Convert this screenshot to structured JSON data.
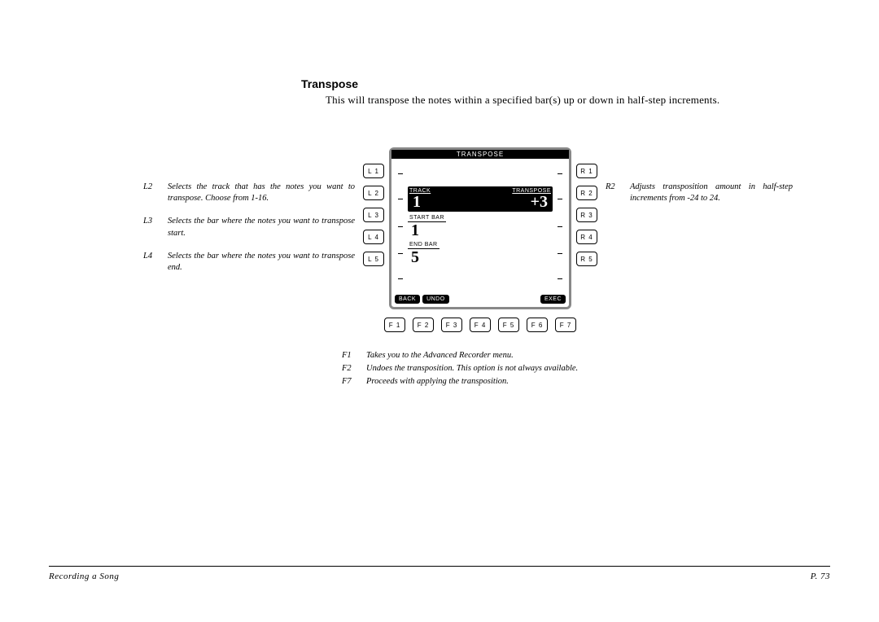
{
  "section": {
    "title": "Transpose",
    "description": "This will transpose the notes within a specified bar(s) up or down in half-step increments."
  },
  "left_notes": [
    {
      "key": "L2",
      "text": "Selects the track that has the notes you want to transpose. Choose from 1-16."
    },
    {
      "key": "L3",
      "text": "Selects the bar where the notes you want to transpose start."
    },
    {
      "key": "L4",
      "text": "Selects the bar where the notes you want to transpose end."
    }
  ],
  "right_notes": [
    {
      "key": "R2",
      "text": "Adjusts transposition amount in half-step increments from -24 to 24."
    }
  ],
  "f_notes": [
    {
      "key": "F1",
      "text": "Takes you  to the Advanced Recorder menu."
    },
    {
      "key": "F2",
      "text": "Undoes the transposition.  This option is not always available."
    },
    {
      "key": "F7",
      "text": "Proceeds with applying the transposition."
    }
  ],
  "lcd": {
    "title": "TRANSPOSE",
    "track_label": "TRACK",
    "track_value": "1",
    "transpose_label": "TRANSPOSE",
    "transpose_value": "+3",
    "start_bar_label": "START BAR",
    "start_bar_value": "1",
    "end_bar_label": "END BAR",
    "end_bar_value": "5",
    "back": "BACK",
    "undo": "UNDO",
    "exec": "EXEC"
  },
  "buttons": {
    "L": [
      "L 1",
      "L 2",
      "L 3",
      "L 4",
      "L 5"
    ],
    "R": [
      "R 1",
      "R 2",
      "R 3",
      "R 4",
      "R 5"
    ],
    "F": [
      "F 1",
      "F 2",
      "F 3",
      "F 4",
      "F 5",
      "F 6",
      "F 7"
    ]
  },
  "footer": {
    "left": "Recording a Song",
    "right": "P. 73"
  }
}
